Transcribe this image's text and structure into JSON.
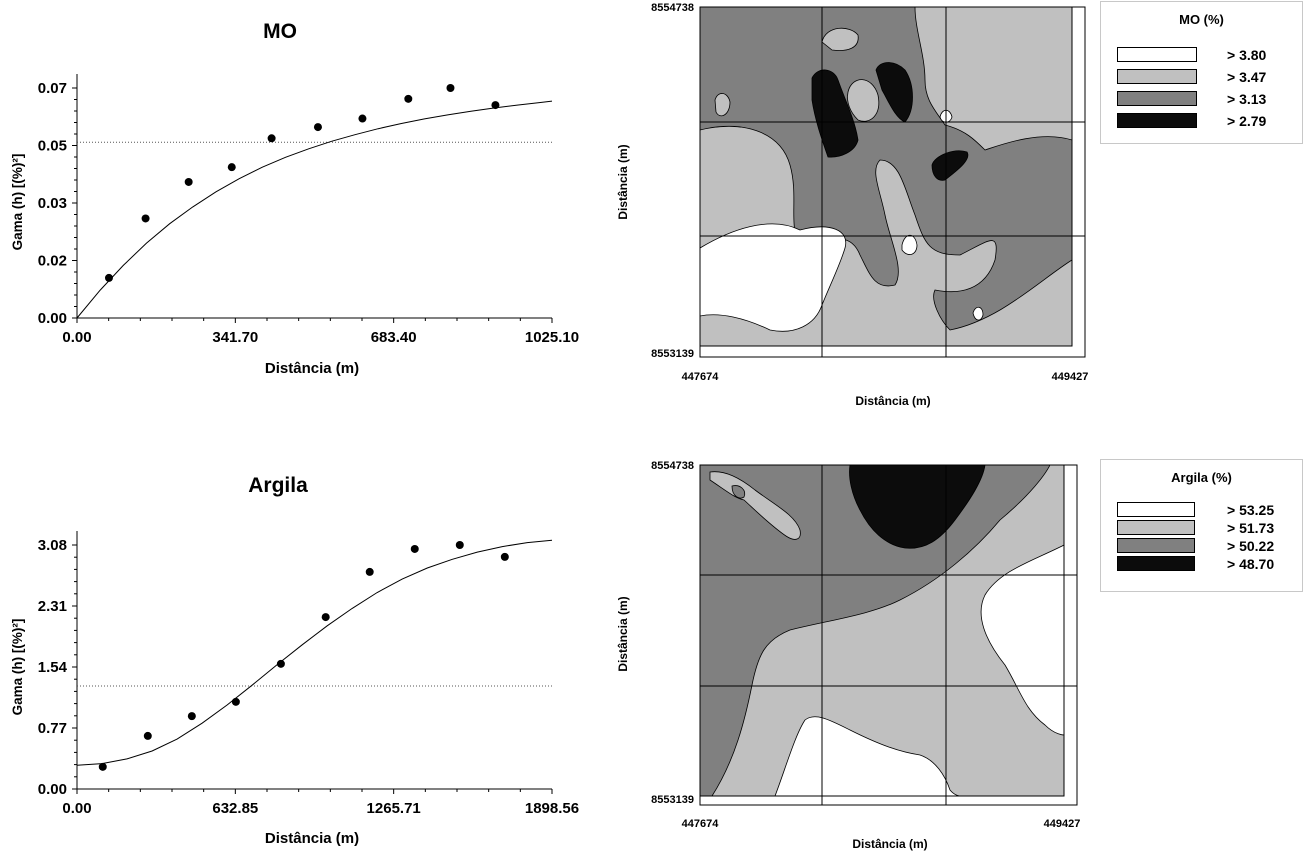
{
  "chart_data": [
    {
      "type": "scatter",
      "title": "MO",
      "xlabel": "Distância (m)",
      "ylabel": "Gama (h) [(%)²]",
      "xlim": [
        0,
        1025.1
      ],
      "ylim": [
        0,
        0.07
      ],
      "x_ticks": [
        "0.00",
        "341.70",
        "683.40",
        "1025.10"
      ],
      "y_ticks": [
        "0.00",
        "0.02",
        "0.03",
        "0.05",
        "0.07"
      ],
      "y_tick_values": [
        0,
        0.0175,
        0.035,
        0.0525,
        0.07
      ],
      "grid": false,
      "sill_line": 0.0535,
      "series": [
        {
          "x": [
            69,
            148,
            241,
            334,
            420,
            520,
            616,
            715,
            806,
            903
          ],
          "y": [
            0.0122,
            0.0303,
            0.0414,
            0.0459,
            0.0547,
            0.0581,
            0.0607,
            0.0667,
            0.07,
            0.0648
          ]
        }
      ],
      "model_curve": {
        "x": [
          0,
          50,
          100,
          150,
          200,
          250,
          300,
          350,
          400,
          450,
          500,
          550,
          600,
          650,
          700,
          750,
          800,
          850,
          900,
          950,
          1000,
          1025.1
        ],
        "y": [
          0,
          0.0085,
          0.016,
          0.0228,
          0.0287,
          0.0338,
          0.0384,
          0.0424,
          0.0459,
          0.0489,
          0.0515,
          0.0538,
          0.0558,
          0.0576,
          0.0592,
          0.0606,
          0.0618,
          0.0629,
          0.0639,
          0.0648,
          0.0656,
          0.066
        ]
      }
    },
    {
      "type": "scatter",
      "title": "Argila",
      "xlabel": "Distância (m)",
      "ylabel": "Gama (h) [(%)²]",
      "xlim": [
        0,
        1898.56
      ],
      "ylim": [
        0,
        3.08
      ],
      "x_ticks": [
        "0.00",
        "632.85",
        "1265.71",
        "1898.56"
      ],
      "y_ticks": [
        "0.00",
        "0.77",
        "1.54",
        "2.31",
        "3.08"
      ],
      "y_tick_values": [
        0,
        0.77,
        1.54,
        2.31,
        3.08
      ],
      "grid": false,
      "sill_line": 1.3,
      "series": [
        {
          "x": [
            103,
            283,
            459,
            635,
            815,
            994,
            1170,
            1350,
            1530,
            1710
          ],
          "y": [
            0.28,
            0.67,
            0.92,
            1.1,
            1.58,
            2.17,
            2.74,
            3.03,
            3.08,
            2.93
          ]
        }
      ],
      "model_curve": {
        "x": [
          0,
          100,
          200,
          300,
          400,
          500,
          600,
          700,
          800,
          900,
          1000,
          1100,
          1200,
          1300,
          1400,
          1500,
          1600,
          1700,
          1800,
          1898.56
        ],
        "y": [
          0.3,
          0.32,
          0.38,
          0.48,
          0.63,
          0.83,
          1.06,
          1.31,
          1.57,
          1.82,
          2.06,
          2.28,
          2.48,
          2.65,
          2.79,
          2.9,
          2.99,
          3.06,
          3.11,
          3.14
        ]
      }
    },
    {
      "type": "heatmap",
      "xlabel": "Distância (m)",
      "ylabel": "Distância (m)",
      "xlim": [
        447674,
        449427
      ],
      "ylim": [
        8553139,
        8554738
      ],
      "x_ticks": [
        "447674",
        "449427"
      ],
      "y_ticks": [
        "8553139",
        "8554738"
      ],
      "legend": {
        "title": "MO (%)",
        "items": [
          {
            "label": "> 3.80",
            "color": "#ffffff"
          },
          {
            "label": "> 3.47",
            "color": "#c0c0c0"
          },
          {
            "label": "> 3.13",
            "color": "#808080"
          },
          {
            "label": "> 2.79",
            "color": "#0c0c0c"
          }
        ]
      }
    },
    {
      "type": "heatmap",
      "xlabel": "Distância (m)",
      "ylabel": "Distância (m)",
      "xlim": [
        447674,
        449427
      ],
      "ylim": [
        8553139,
        8554738
      ],
      "x_ticks": [
        "447674",
        "449427"
      ],
      "y_ticks": [
        "8553139",
        "8554738"
      ],
      "legend": {
        "title": "Argila (%)",
        "items": [
          {
            "label": "> 53.25",
            "color": "#ffffff"
          },
          {
            "label": "> 51.73",
            "color": "#c0c0c0"
          },
          {
            "label": "> 50.22",
            "color": "#808080"
          },
          {
            "label": "> 48.70",
            "color": "#0c0c0c"
          }
        ]
      }
    }
  ]
}
